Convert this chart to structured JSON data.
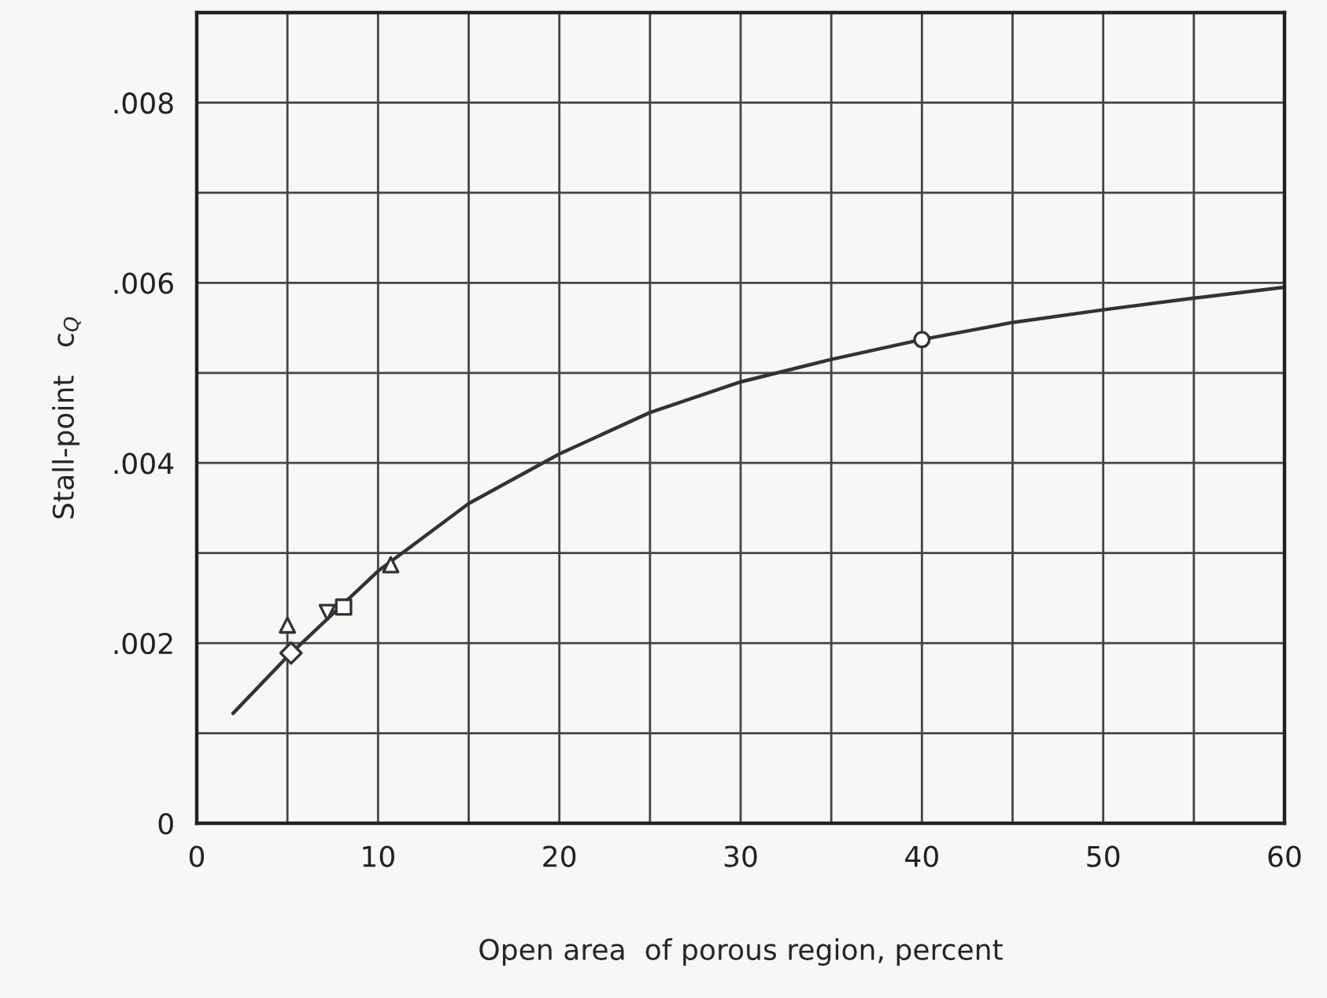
{
  "chart_data": {
    "type": "scatter",
    "xlabel": "Open area  of porous region, percent",
    "ylabel": "Stall-point   c$_{Q}$",
    "xlim": [
      0,
      60
    ],
    "ylim": [
      0,
      0.009
    ],
    "xticks": [
      0,
      {
        "value": 5,
        "label": null
      },
      10,
      {
        "value": 15,
        "label": null
      },
      20,
      {
        "value": 25,
        "label": null
      },
      30,
      {
        "value": 35,
        "label": null
      },
      40,
      {
        "value": 45,
        "label": null
      },
      50,
      {
        "value": 55,
        "label": null
      },
      60
    ],
    "yticks": [
      {
        "value": 0,
        "label": "0"
      },
      {
        "value": 0.001,
        "label": null
      },
      {
        "value": 0.002,
        "label": ".002"
      },
      {
        "value": 0.003,
        "label": null
      },
      {
        "value": 0.004,
        "label": ".004"
      },
      {
        "value": 0.005,
        "label": null
      },
      {
        "value": 0.006,
        "label": ".006"
      },
      {
        "value": 0.007,
        "label": null
      },
      {
        "value": 0.008,
        "label": ".008"
      }
    ],
    "grid": true,
    "series": [
      {
        "type": "line",
        "color": "#333333",
        "marker": "none",
        "line_style": "solid",
        "x": [
          2,
          5,
          10,
          15,
          20,
          25,
          30,
          35,
          40,
          45,
          50,
          55,
          60
        ],
        "values": [
          0.00122,
          0.00185,
          0.0028,
          0.00355,
          0.0041,
          0.00456,
          0.0049,
          0.00515,
          0.00537,
          0.00556,
          0.0057,
          0.00583,
          0.00595
        ]
      },
      {
        "color": "#333333",
        "marker": "triangle",
        "x": [
          5
        ],
        "values": [
          0.0022
        ]
      },
      {
        "color": "#333333",
        "marker": "diamond",
        "x": [
          5.2
        ],
        "values": [
          0.00189
        ]
      },
      {
        "color": "#333333",
        "marker": "triangle_down",
        "x": [
          7.2
        ],
        "values": [
          0.00234
        ]
      },
      {
        "color": "#333333",
        "marker": "square",
        "x": [
          8.1
        ],
        "values": [
          0.0024
        ]
      },
      {
        "color": "#333333",
        "marker": "triangle",
        "x": [
          10.7
        ],
        "values": [
          0.00287
        ]
      },
      {
        "color": "#333333",
        "marker": "circle",
        "x": [
          40
        ],
        "values": [
          0.00537
        ]
      }
    ]
  }
}
